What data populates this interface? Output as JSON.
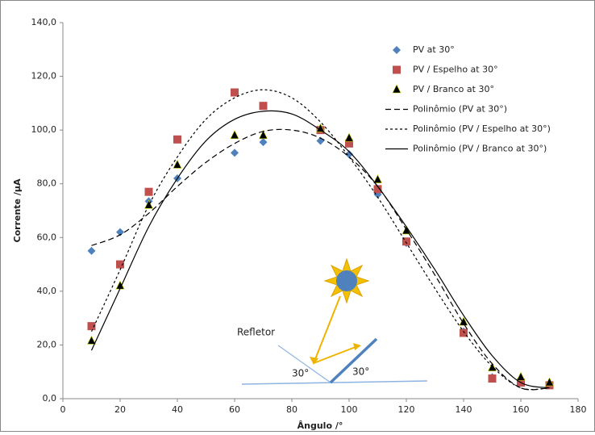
{
  "chart_data": {
    "type": "scatter",
    "x_label": "Ângulo /°",
    "y_label": "Corrente /µA",
    "xlim": [
      0,
      180
    ],
    "xticks": [
      0,
      20,
      40,
      60,
      80,
      100,
      120,
      140,
      160,
      180
    ],
    "ylim": [
      0,
      140
    ],
    "yticks": [
      {
        "value": 0,
        "label": "0,0"
      },
      {
        "value": 20,
        "label": "20,0"
      },
      {
        "value": 40,
        "label": "40,0"
      },
      {
        "value": 60,
        "label": "60,0"
      },
      {
        "value": 80,
        "label": "80,0"
      },
      {
        "value": 100,
        "label": "100,0"
      },
      {
        "value": 120,
        "label": "120,0"
      },
      {
        "value": 140,
        "label": "140,0"
      }
    ],
    "series": [
      {
        "name": "PV at 30°",
        "color": "#4f81bd",
        "marker": "diamond",
        "x": [
          10,
          20,
          30,
          40,
          60,
          70,
          90,
          100,
          110,
          120,
          140,
          150,
          160,
          170
        ],
        "values": [
          55,
          62,
          73.5,
          82,
          91.5,
          95.5,
          96,
          91,
          76,
          58,
          25,
          8,
          6,
          5
        ]
      },
      {
        "name": "PV / Espelho at 30°",
        "color": "#c0504d",
        "marker": "square",
        "x": [
          10,
          20,
          30,
          40,
          60,
          70,
          90,
          100,
          110,
          120,
          140,
          150,
          160,
          170
        ],
        "values": [
          27,
          50,
          77,
          96.5,
          114,
          109,
          100,
          95,
          78,
          58.5,
          24.5,
          7.5,
          6,
          5
        ]
      },
      {
        "name": "PV / Branco at 30°",
        "color": "#000000",
        "marker": "triangle",
        "x": [
          10,
          20,
          30,
          40,
          60,
          70,
          90,
          100,
          110,
          120,
          140,
          150,
          160,
          170
        ],
        "values": [
          21.5,
          42,
          72,
          87,
          98,
          98,
          100.5,
          97,
          81.5,
          62.5,
          28.5,
          11.5,
          8,
          6
        ]
      },
      {
        "name": "Polinômio (PV at 30°)",
        "color": "#000000",
        "marker": "line",
        "dash": "7,4",
        "x": [
          10,
          20,
          30,
          40,
          50,
          60,
          70,
          80,
          90,
          100,
          110,
          120,
          130,
          140,
          150,
          160,
          170
        ],
        "values": [
          57,
          61,
          69,
          79,
          88,
          95,
          99.5,
          100,
          97,
          90,
          79,
          63,
          46,
          28,
          13,
          4,
          4
        ]
      },
      {
        "name": "Polinômio (PV / Espelho at 30°)",
        "color": "#000000",
        "marker": "line",
        "dash": "3,3",
        "x": [
          10,
          20,
          30,
          40,
          50,
          60,
          70,
          80,
          90,
          100,
          110,
          120,
          130,
          140,
          150,
          160,
          170
        ],
        "values": [
          25,
          48,
          72,
          90,
          104,
          112,
          115,
          112,
          103,
          90,
          75,
          58,
          41,
          25,
          12,
          4,
          4
        ]
      },
      {
        "name": "Polinômio (PV / Branco at 30°)",
        "color": "#000000",
        "marker": "line",
        "dash": "none",
        "x": [
          10,
          20,
          30,
          40,
          50,
          60,
          70,
          80,
          90,
          100,
          110,
          120,
          130,
          140,
          150,
          160,
          170
        ],
        "values": [
          18,
          41,
          64,
          82,
          96,
          104,
          107,
          106,
          100,
          92,
          79,
          64,
          48,
          31,
          16,
          6,
          4
        ]
      }
    ],
    "annotations": [
      "Refletor",
      "30°",
      "30°"
    ]
  }
}
